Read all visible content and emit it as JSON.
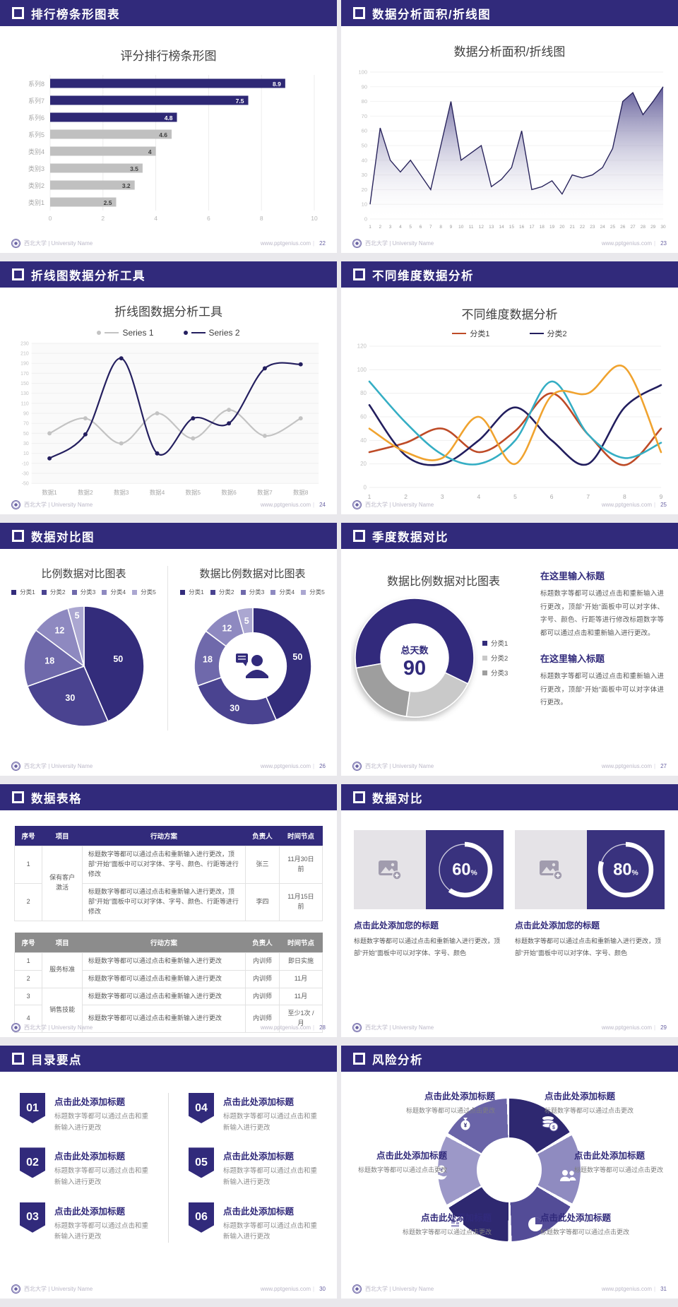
{
  "brand": {
    "logo_text": "西北大学 | University Name",
    "website": "www.pptgenius.com"
  },
  "slides": [
    {
      "header": "排行榜条形图表",
      "page": "22"
    },
    {
      "header": "数据分析面积/折线图",
      "page": "23"
    },
    {
      "header": "折线图数据分析工具",
      "page": "24"
    },
    {
      "header": "不同维度数据分析",
      "page": "25"
    },
    {
      "header": "数据对比图",
      "page": "26"
    },
    {
      "header": "季度数据对比",
      "page": "27",
      "blocks": [
        {
          "title": "在这里输入标题",
          "body": "标题数字等都可以通过点击和重新输入进行更改，顶部“开始”面板中可以对字体、字号、颜色、行距等进行修改标题数字等都可以通过点击和重新输入进行更改。"
        },
        {
          "title": "在这里输入标题",
          "body": "标题数字等都可以通过点击和重新输入进行更改，顶部“开始”面板中可以对字体进行更改。"
        }
      ]
    },
    {
      "header": "数据表格",
      "page": "28",
      "table1": {
        "columns": [
          "序号",
          "项目",
          "行动方案",
          "负责人",
          "时间节点"
        ],
        "rows": [
          [
            "1",
            "保有客户激活",
            "标题数字等都可以通过点击和重新输入进行更改，顶部“开始”面板中可以对字体、字号、颜色、行距等进行修改",
            "张三",
            "11月30日前"
          ],
          [
            "2",
            "",
            "标题数字等都可以通过点击和重新输入进行更改，顶部“开始”面板中可以对字体、字号、颜色、行距等进行修改",
            "李四",
            "11月15日前"
          ]
        ]
      },
      "table2": {
        "columns": [
          "序号",
          "项目",
          "行动方案",
          "负责人",
          "时间节点"
        ],
        "rows": [
          [
            "1",
            "服务标准",
            "标题数字等都可以通过点击和重新输入进行更改",
            "内训师",
            "即日实施"
          ],
          [
            "2",
            "",
            "标题数字等都可以通过点击和重新输入进行更改",
            "内训师",
            "11月"
          ],
          [
            "3",
            "销售技能",
            "标题数字等都可以通过点击和重新输入进行更改",
            "内训师",
            "11月"
          ],
          [
            "4",
            "",
            "标题数字等都可以通过点击和重新输入进行更改",
            "内训师",
            "至少1次 /月"
          ]
        ]
      }
    },
    {
      "header": "数据对比",
      "page": "29",
      "cards": [
        {
          "title": "点击此处添加您的标题",
          "body": "标题数字等都可以通过点击和重新输入进行更改，顶部“开始”面板中可以对字体、字号、颜色"
        },
        {
          "title": "点击此处添加您的标题",
          "body": "标题数字等都可以通过点击和重新输入进行更改，顶部“开始”面板中可以对字体、字号、颜色"
        }
      ]
    },
    {
      "header": "目录要点",
      "page": "30",
      "items": [
        {
          "num": "01",
          "title": "点击此处添加标题",
          "body": "标题数字等都可以通过点击和重新输入进行更改"
        },
        {
          "num": "02",
          "title": "点击此处添加标题",
          "body": "标题数字等都可以通过点击和重新输入进行更改"
        },
        {
          "num": "03",
          "title": "点击此处添加标题",
          "body": "标题数字等都可以通过点击和重新输入进行更改"
        },
        {
          "num": "04",
          "title": "点击此处添加标题",
          "body": "标题数字等都可以通过点击和重新输入进行更改"
        },
        {
          "num": "05",
          "title": "点击此处添加标题",
          "body": "标题数字等都可以通过点击和重新输入进行更改"
        },
        {
          "num": "06",
          "title": "点击此处添加标题",
          "body": "标题数字等都可以通过点击和重新输入进行更改"
        }
      ]
    },
    {
      "header": "风险分析",
      "page": "31",
      "items": [
        {
          "title": "点击此处添加标题",
          "body": "标题数字等都可以通过点击更改"
        },
        {
          "title": "点击此处添加标题",
          "body": "标题数字等都可以通过点击更改"
        },
        {
          "title": "点击此处添加标题",
          "body": "标题数字等都可以通过点击更改"
        },
        {
          "title": "点击此处添加标题",
          "body": "标题数字等都可以通过点击更改"
        },
        {
          "title": "点击此处添加标题",
          "body": "标题数字等都可以通过点击更改"
        },
        {
          "title": "点击此处添加标题",
          "body": "标题数字等都可以通过点击更改"
        }
      ]
    }
  ],
  "chart_data": [
    {
      "type": "bar_h",
      "title": "评分排行榜条形图",
      "categories": [
        "系列8",
        "系列7",
        "系列6",
        "系列5",
        "类别4",
        "类别3",
        "类别2",
        "类别1"
      ],
      "values": [
        8.9,
        7.5,
        4.8,
        4.6,
        4,
        3.5,
        3.2,
        2.5
      ],
      "colors": [
        "#2E2875",
        "#2E2875",
        "#2E2875",
        "#C0C0C0",
        "#C0C0C0",
        "#C0C0C0",
        "#C0C0C0",
        "#C0C0C0"
      ],
      "xticks": [
        0,
        2,
        4,
        6,
        8,
        10
      ],
      "xlim": [
        0,
        10
      ],
      "grid": true
    },
    {
      "type": "area",
      "title": "数据分析面积/折线图",
      "x": [
        1,
        2,
        3,
        4,
        5,
        6,
        7,
        8,
        9,
        10,
        11,
        12,
        13,
        14,
        15,
        16,
        17,
        18,
        19,
        20,
        21,
        22,
        23,
        24,
        25,
        26,
        27,
        28,
        29,
        30
      ],
      "values": [
        10,
        62,
        40,
        32,
        40,
        30,
        20,
        50,
        80,
        40,
        45,
        50,
        22,
        27,
        35,
        60,
        20,
        22,
        26,
        17,
        30,
        28,
        30,
        35,
        48,
        80,
        86,
        71,
        80,
        90
      ],
      "ylim": [
        0,
        100
      ],
      "ytick_step": 10,
      "line_color": "#29245C",
      "fill_from": "#514B8E",
      "fill_to": "#FFFFFF"
    },
    {
      "type": "line",
      "title": "折线图数据分析工具",
      "categories": [
        "数据1",
        "数据2",
        "数据3",
        "数据4",
        "数据5",
        "数据6",
        "数据7",
        "数据8"
      ],
      "ylim": [
        -50,
        230
      ],
      "ytick_step": 20,
      "plot_bg": "#FAFAFA",
      "markers": true,
      "line_width": 2.2,
      "series": [
        {
          "name": "Series 1",
          "color": "#C3C3C3",
          "values": [
            50,
            80,
            30,
            90,
            40,
            97,
            45,
            80
          ]
        },
        {
          "name": "Series 2",
          "color": "#241F5F",
          "values": [
            0,
            48,
            200,
            10,
            80,
            70,
            180,
            188
          ]
        }
      ]
    },
    {
      "type": "line",
      "title": "不同维度数据分析",
      "x": [
        1,
        2,
        3,
        4,
        5,
        6,
        7,
        8,
        9
      ],
      "ylim": [
        0,
        120
      ],
      "ytick_step": 20,
      "line_width": 2.6,
      "series": [
        {
          "name": "分类1",
          "color": "#BE4B27",
          "values": [
            30,
            38,
            50,
            30,
            48,
            80,
            45,
            19,
            50
          ]
        },
        {
          "name": "分类2",
          "color": "#221E5E",
          "values": [
            70,
            27,
            20,
            40,
            68,
            40,
            20,
            68,
            87
          ]
        },
        {
          "name": "",
          "color": "#35AEC4",
          "values": [
            90,
            55,
            28,
            20,
            40,
            90,
            45,
            25,
            38
          ]
        },
        {
          "name": "",
          "color": "#F0A32F",
          "values": [
            50,
            30,
            25,
            60,
            20,
            78,
            80,
            102,
            30
          ]
        }
      ]
    },
    {
      "type": "pie",
      "title": "比例数据对比图表",
      "labels": [
        "分类1",
        "分类2",
        "分类3",
        "分类4",
        "分类5"
      ],
      "values": [
        50,
        30,
        18,
        12,
        5
      ],
      "colors": [
        "#332C7B",
        "#4A4390",
        "#6F69AB",
        "#8E89C0",
        "#ABA7D1"
      ]
    },
    {
      "type": "donut",
      "title": "数据比例数据对比图表",
      "labels": [
        "分类1",
        "分类2",
        "分类3",
        "分类4",
        "分类5"
      ],
      "values": [
        50,
        30,
        18,
        12,
        5
      ],
      "colors": [
        "#332C7B",
        "#4A4390",
        "#6F69AB",
        "#8E89C0",
        "#ABA7D1"
      ],
      "center": "presenter"
    },
    {
      "type": "donut",
      "title": "数据比例数据对比图表",
      "labels": [
        "分类1",
        "分类2",
        "分类3"
      ],
      "values": [
        60,
        20,
        20
      ],
      "colors": [
        "#332C7B",
        "#C9C9C9",
        "#9E9E9E"
      ],
      "start_deg": -100,
      "labels_hidden": true,
      "shadow": true,
      "center_label": "总天数",
      "center_value": "90"
    },
    {
      "type": "ring",
      "value": 60,
      "suffix": "%"
    },
    {
      "type": "ring",
      "value": 80,
      "suffix": "%"
    }
  ]
}
